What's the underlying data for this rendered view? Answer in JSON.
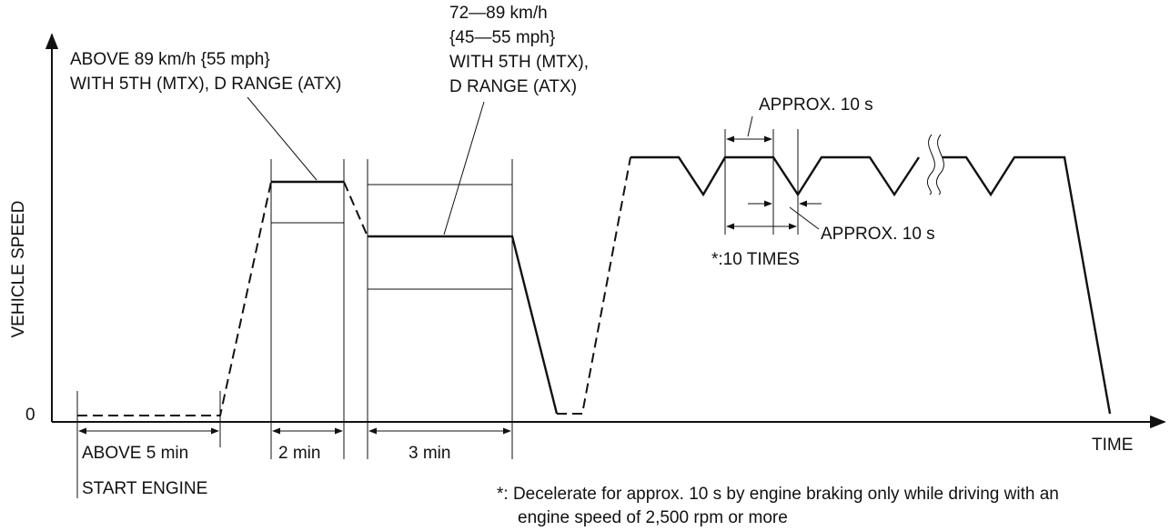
{
  "axes": {
    "y_label": "VEHICLE SPEED",
    "y_zero": "0",
    "x_label": "TIME"
  },
  "annotations": {
    "above89_line1": "ABOVE 89 km/h {55 mph}",
    "above89_line2": "WITH 5TH (MTX), D RANGE (ATX)",
    "range72_line1": "72—89 km/h",
    "range72_line2": "{45—55 mph}",
    "range72_line3": "WITH 5TH (MTX),",
    "range72_line4": "D RANGE (ATX)",
    "approx_top": "APPROX. 10 s",
    "approx_bottom": "APPROX. 10 s",
    "ten_times": "*:10 TIMES"
  },
  "intervals": {
    "above5": "ABOVE 5 min",
    "two_min": "2 min",
    "three_min": "3 min",
    "start_engine": "START ENGINE"
  },
  "footnote": {
    "line1": "*: Decelerate for approx. 10 s by engine braking only while driving with an",
    "line2": "engine speed of 2,500 rpm or more"
  }
}
